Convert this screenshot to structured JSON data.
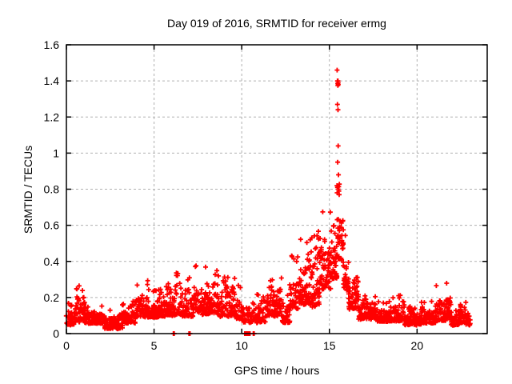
{
  "page": {
    "background": "#ffffff"
  },
  "style": {
    "frame_color": "#000000",
    "grid_color": "#b0b0b0",
    "text_color": "#000000",
    "marker_color": "#ff0000"
  },
  "chart_data": {
    "type": "scatter",
    "title": "Day 019 of 2016, SRMTID for receiver ermg",
    "xlabel": "GPS time / hours",
    "ylabel": "SRMTID / TECUs",
    "xlim": [
      0,
      24
    ],
    "ylim": [
      0,
      1.6
    ],
    "xticks": [
      0,
      5,
      10,
      15,
      20
    ],
    "yticks": [
      0,
      0.2,
      0.4,
      0.6,
      0.8,
      1,
      1.2,
      1.4,
      1.6
    ],
    "grid": true,
    "legend": "none",
    "marker": {
      "shape": "plus",
      "color": "#ff0000",
      "size": 7
    },
    "series": [
      {
        "name": "SRMTID",
        "envelope_bands": {
          "columns": [
            "x_start_h",
            "x_end_h",
            "y_min_TECU",
            "y_max_TECU",
            "density"
          ],
          "rows": [
            [
              0.0,
              0.55,
              0.04,
              0.17,
              1.0
            ],
            [
              0.55,
              1.05,
              0.05,
              0.27,
              1.0
            ],
            [
              1.05,
              2.2,
              0.05,
              0.16,
              1.2
            ],
            [
              2.2,
              3.2,
              0.02,
              0.14,
              1.1
            ],
            [
              3.2,
              3.95,
              0.05,
              0.18,
              1.1
            ],
            [
              3.95,
              4.65,
              0.08,
              0.3,
              1.1
            ],
            [
              4.65,
              5.25,
              0.08,
              0.26,
              1.1
            ],
            [
              5.25,
              6.1,
              0.08,
              0.33,
              1.1
            ],
            [
              6.1,
              6.7,
              0.08,
              0.37,
              1.0
            ],
            [
              6.7,
              7.25,
              0.08,
              0.33,
              1.0
            ],
            [
              7.25,
              7.75,
              0.1,
              0.4,
              1.0
            ],
            [
              7.75,
              8.6,
              0.09,
              0.37,
              1.1
            ],
            [
              8.6,
              9.6,
              0.08,
              0.32,
              1.1
            ],
            [
              9.6,
              10.1,
              0.07,
              0.28,
              0.9
            ],
            [
              10.1,
              10.85,
              0.05,
              0.24,
              0.55
            ],
            [
              10.85,
              11.35,
              0.05,
              0.23,
              0.9
            ],
            [
              11.35,
              12.3,
              0.08,
              0.31,
              1.1
            ],
            [
              12.3,
              12.75,
              0.05,
              0.23,
              1.0
            ],
            [
              12.75,
              13.3,
              0.12,
              0.44,
              1.1
            ],
            [
              13.3,
              13.85,
              0.14,
              0.53,
              1.2
            ],
            [
              13.85,
              14.45,
              0.12,
              0.57,
              1.25
            ],
            [
              14.45,
              15.1,
              0.22,
              0.68,
              1.25
            ],
            [
              15.1,
              15.45,
              0.27,
              0.87,
              1.3
            ],
            [
              15.45,
              15.8,
              0.38,
              0.85,
              1.3
            ],
            [
              15.8,
              16.1,
              0.22,
              0.55,
              1.1
            ],
            [
              16.1,
              16.65,
              0.12,
              0.38,
              1.1
            ],
            [
              16.65,
              17.7,
              0.07,
              0.21,
              1.2
            ],
            [
              17.7,
              18.5,
              0.06,
              0.18,
              1.2
            ],
            [
              18.5,
              19.3,
              0.06,
              0.22,
              1.1
            ],
            [
              19.3,
              20.25,
              0.04,
              0.15,
              1.1
            ],
            [
              20.25,
              21.05,
              0.05,
              0.18,
              1.1
            ],
            [
              21.05,
              21.95,
              0.06,
              0.28,
              1.1
            ],
            [
              21.95,
              22.45,
              0.04,
              0.13,
              1.0
            ],
            [
              22.45,
              22.8,
              0.05,
              0.19,
              1.0
            ],
            [
              22.8,
              23.05,
              0.04,
              0.12,
              0.9
            ]
          ]
        },
        "peak_outliers": [
          [
            15.44,
            1.46
          ],
          [
            15.46,
            1.4
          ],
          [
            15.49,
            1.4
          ],
          [
            15.47,
            1.385
          ],
          [
            15.5,
            1.39
          ],
          [
            15.48,
            1.375
          ],
          [
            15.51,
            1.38
          ],
          [
            15.46,
            1.27
          ],
          [
            15.49,
            1.24
          ],
          [
            15.5,
            1.04
          ],
          [
            15.47,
            0.95
          ],
          [
            15.52,
            0.88
          ],
          [
            15.43,
            0.82
          ],
          [
            15.46,
            0.81
          ],
          [
            15.5,
            0.8
          ],
          [
            15.54,
            0.79
          ],
          [
            15.44,
            0.78
          ],
          [
            15.56,
            0.77
          ]
        ],
        "zero_markers": {
          "singles_x": [
            6.1,
            6.15,
            6.99,
            7.05,
            10.66,
            10.71
          ],
          "block": {
            "x_start_h": 10.12,
            "x_end_h": 10.48,
            "count": 26
          }
        }
      }
    ]
  }
}
